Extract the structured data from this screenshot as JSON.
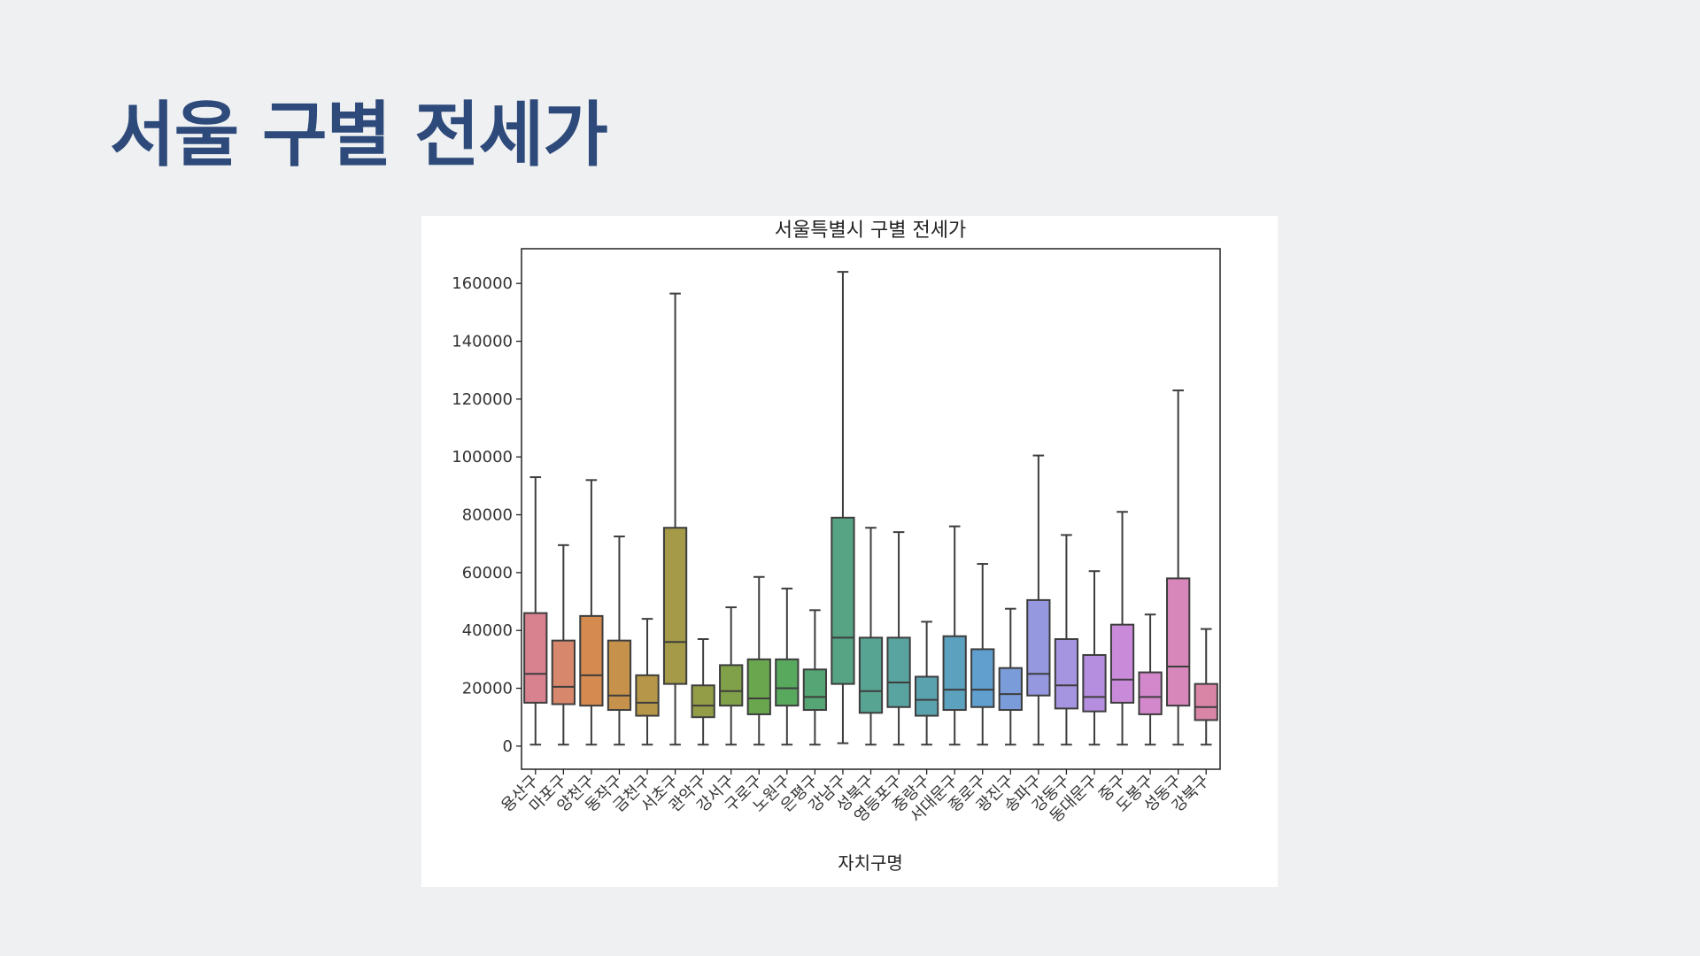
{
  "slide": {
    "title": "서울 구별 전세가"
  },
  "chart_data": {
    "type": "box",
    "title": "서울특별시 구별 전세가",
    "xlabel": "자치구명",
    "ylabel": "",
    "ylim": [
      -8000,
      172000
    ],
    "yticks": [
      0,
      20000,
      40000,
      60000,
      80000,
      100000,
      120000,
      140000,
      160000
    ],
    "grid": false,
    "categories": [
      "용산구",
      "마포구",
      "양천구",
      "동작구",
      "금천구",
      "서초구",
      "관악구",
      "강서구",
      "구로구",
      "노원구",
      "은평구",
      "강남구",
      "성북구",
      "영등포구",
      "중랑구",
      "서대문구",
      "종로구",
      "광진구",
      "송파구",
      "강동구",
      "동대문구",
      "중구",
      "도봉구",
      "성동구",
      "강북구"
    ],
    "boxes": [
      {
        "category": "용산구",
        "whislo": 500,
        "q1": 15000,
        "med": 25000,
        "q3": 46000,
        "whishi": 93000,
        "color": "#d9828f"
      },
      {
        "category": "마포구",
        "whislo": 500,
        "q1": 14500,
        "med": 20500,
        "q3": 36500,
        "whishi": 69500,
        "color": "#d7876c"
      },
      {
        "category": "양천구",
        "whislo": 500,
        "q1": 14000,
        "med": 24500,
        "q3": 45000,
        "whishi": 92000,
        "color": "#d58a50"
      },
      {
        "category": "동작구",
        "whislo": 500,
        "q1": 12500,
        "med": 17500,
        "q3": 36500,
        "whishi": 72500,
        "color": "#c6914a"
      },
      {
        "category": "금천구",
        "whislo": 500,
        "q1": 10500,
        "med": 15000,
        "q3": 24500,
        "whishi": 44000,
        "color": "#b6974a"
      },
      {
        "category": "서초구",
        "whislo": 500,
        "q1": 21500,
        "med": 36000,
        "q3": 75500,
        "whishi": 156500,
        "color": "#a49a48"
      },
      {
        "category": "관악구",
        "whislo": 500,
        "q1": 10000,
        "med": 14000,
        "q3": 21000,
        "whishi": 37000,
        "color": "#939d48"
      },
      {
        "category": "강서구",
        "whislo": 500,
        "q1": 14000,
        "med": 19000,
        "q3": 28000,
        "whishi": 48000,
        "color": "#80a149"
      },
      {
        "category": "구로구",
        "whislo": 500,
        "q1": 11000,
        "med": 16500,
        "q3": 30000,
        "whishi": 58500,
        "color": "#6aa64e"
      },
      {
        "category": "노원구",
        "whislo": 500,
        "q1": 14000,
        "med": 20000,
        "q3": 30000,
        "whishi": 54500,
        "color": "#58a85e"
      },
      {
        "category": "은평구",
        "whislo": 500,
        "q1": 12500,
        "med": 17000,
        "q3": 26500,
        "whishi": 47000,
        "color": "#55a674"
      },
      {
        "category": "강남구",
        "whislo": 1000,
        "q1": 21500,
        "med": 37500,
        "q3": 79000,
        "whishi": 164000,
        "color": "#56a484"
      },
      {
        "category": "성북구",
        "whislo": 500,
        "q1": 11500,
        "med": 19000,
        "q3": 37500,
        "whishi": 75500,
        "color": "#58a493"
      },
      {
        "category": "영등포구",
        "whislo": 500,
        "q1": 13500,
        "med": 22000,
        "q3": 37500,
        "whishi": 74000,
        "color": "#59a3a0"
      },
      {
        "category": "중랑구",
        "whislo": 500,
        "q1": 10500,
        "med": 16000,
        "q3": 24000,
        "whishi": 43000,
        "color": "#5aa2ae"
      },
      {
        "category": "서대문구",
        "whislo": 500,
        "q1": 12500,
        "med": 19500,
        "q3": 38000,
        "whishi": 76000,
        "color": "#5ca1bd"
      },
      {
        "category": "종로구",
        "whislo": 500,
        "q1": 13500,
        "med": 19500,
        "q3": 33500,
        "whishi": 63000,
        "color": "#619fce"
      },
      {
        "category": "광진구",
        "whislo": 500,
        "q1": 12500,
        "med": 18000,
        "q3": 27000,
        "whishi": 47500,
        "color": "#7a9cd9"
      },
      {
        "category": "송파구",
        "whislo": 500,
        "q1": 17500,
        "med": 25000,
        "q3": 50500,
        "whishi": 100500,
        "color": "#9598de"
      },
      {
        "category": "강동구",
        "whislo": 500,
        "q1": 13000,
        "med": 21000,
        "q3": 37000,
        "whishi": 73000,
        "color": "#a594e0"
      },
      {
        "category": "동대문구",
        "whislo": 500,
        "q1": 12000,
        "med": 17000,
        "q3": 31500,
        "whishi": 60500,
        "color": "#b58ee0"
      },
      {
        "category": "중구",
        "whislo": 500,
        "q1": 15000,
        "med": 23000,
        "q3": 42000,
        "whishi": 81000,
        "color": "#c98ada"
      },
      {
        "category": "도봉구",
        "whislo": 500,
        "q1": 11000,
        "med": 17000,
        "q3": 25500,
        "whishi": 45500,
        "color": "#d388cc"
      },
      {
        "category": "성동구",
        "whislo": 500,
        "q1": 14000,
        "med": 27500,
        "q3": 58000,
        "whishi": 123000,
        "color": "#d887bb"
      },
      {
        "category": "강북구",
        "whislo": 500,
        "q1": 9000,
        "med": 13500,
        "q3": 21500,
        "whishi": 40500,
        "color": "#d986a6"
      }
    ]
  }
}
